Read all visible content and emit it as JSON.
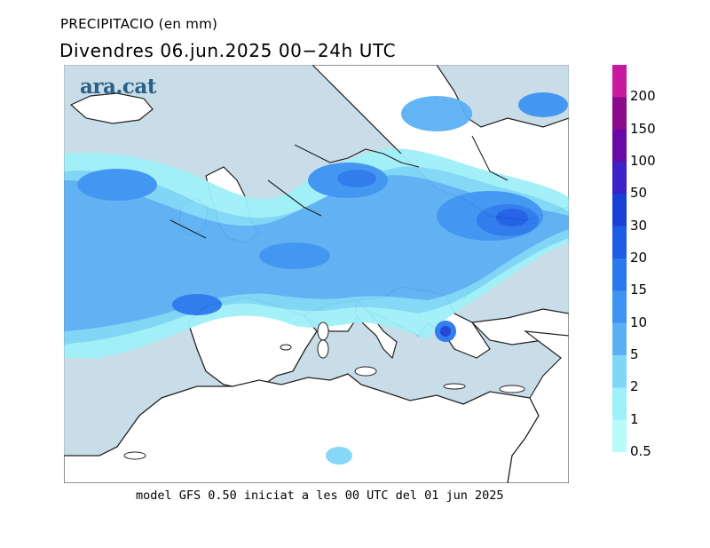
{
  "header": {
    "variable": "PRECIPITACIO (en mm)",
    "period": "Divendres  06.jun.2025 00−24h UTC"
  },
  "logo": "ara.cat",
  "footer": "model GFS 0.50 iniciat a les 00 UTC del 01 jun 2025",
  "legend": {
    "labels": [
      "200",
      "150",
      "100",
      "50",
      "30",
      "20",
      "15",
      "10",
      "5",
      "2",
      "1",
      "0.5"
    ],
    "colors": [
      "#c81a9c",
      "#8b0a8a",
      "#6a0aa6",
      "#3a22c8",
      "#1a3fd6",
      "#1d5ce6",
      "#2a78ee",
      "#3d94f2",
      "#5bb0f4",
      "#7fd6f6",
      "#9ff0f8",
      "#b8fbfb"
    ]
  },
  "map_colors": {
    "sea": "#c8dde8",
    "land": "#ffffff",
    "coast": "#222222"
  }
}
